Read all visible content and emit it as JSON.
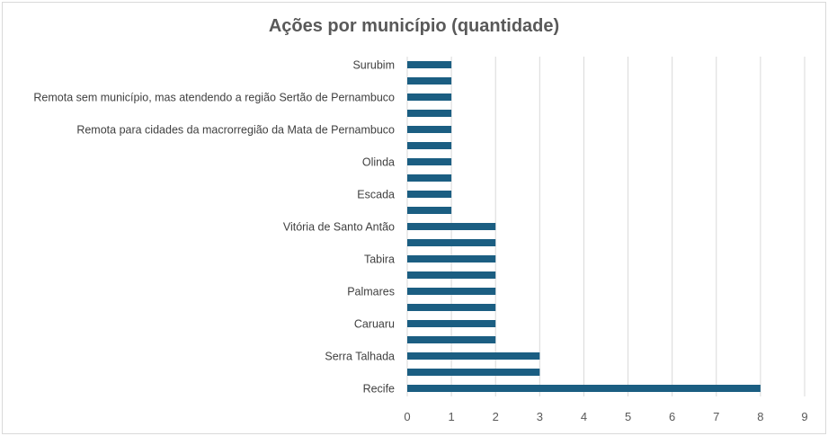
{
  "chart_data": {
    "type": "bar",
    "orientation": "horizontal",
    "title": "Ações por município (quantidade)",
    "xlabel": "",
    "ylabel": "",
    "xlim": [
      0,
      9
    ],
    "xticks": [
      "0",
      "1",
      "2",
      "3",
      "4",
      "5",
      "6",
      "7",
      "8",
      "9"
    ],
    "grid": true,
    "legend": "none",
    "bar_color": "#1b5e82",
    "categories_top_to_bottom": [
      "Surubim",
      "",
      "Remota sem município, mas atendendo a região Sertão de Pernambuco",
      "",
      "Remota para cidades da macrorregião da Mata de Pernambuco",
      "",
      "Olinda",
      "",
      "Escada",
      "",
      "Vitória de Santo Antão",
      "",
      "Tabira",
      "",
      "Palmares",
      "",
      "Caruaru",
      "",
      "Serra Talhada",
      "",
      "Recife"
    ],
    "values_top_to_bottom": [
      1,
      1,
      1,
      1,
      1,
      1,
      1,
      1,
      1,
      1,
      2,
      2,
      2,
      2,
      2,
      2,
      2,
      2,
      3,
      3,
      8
    ]
  }
}
